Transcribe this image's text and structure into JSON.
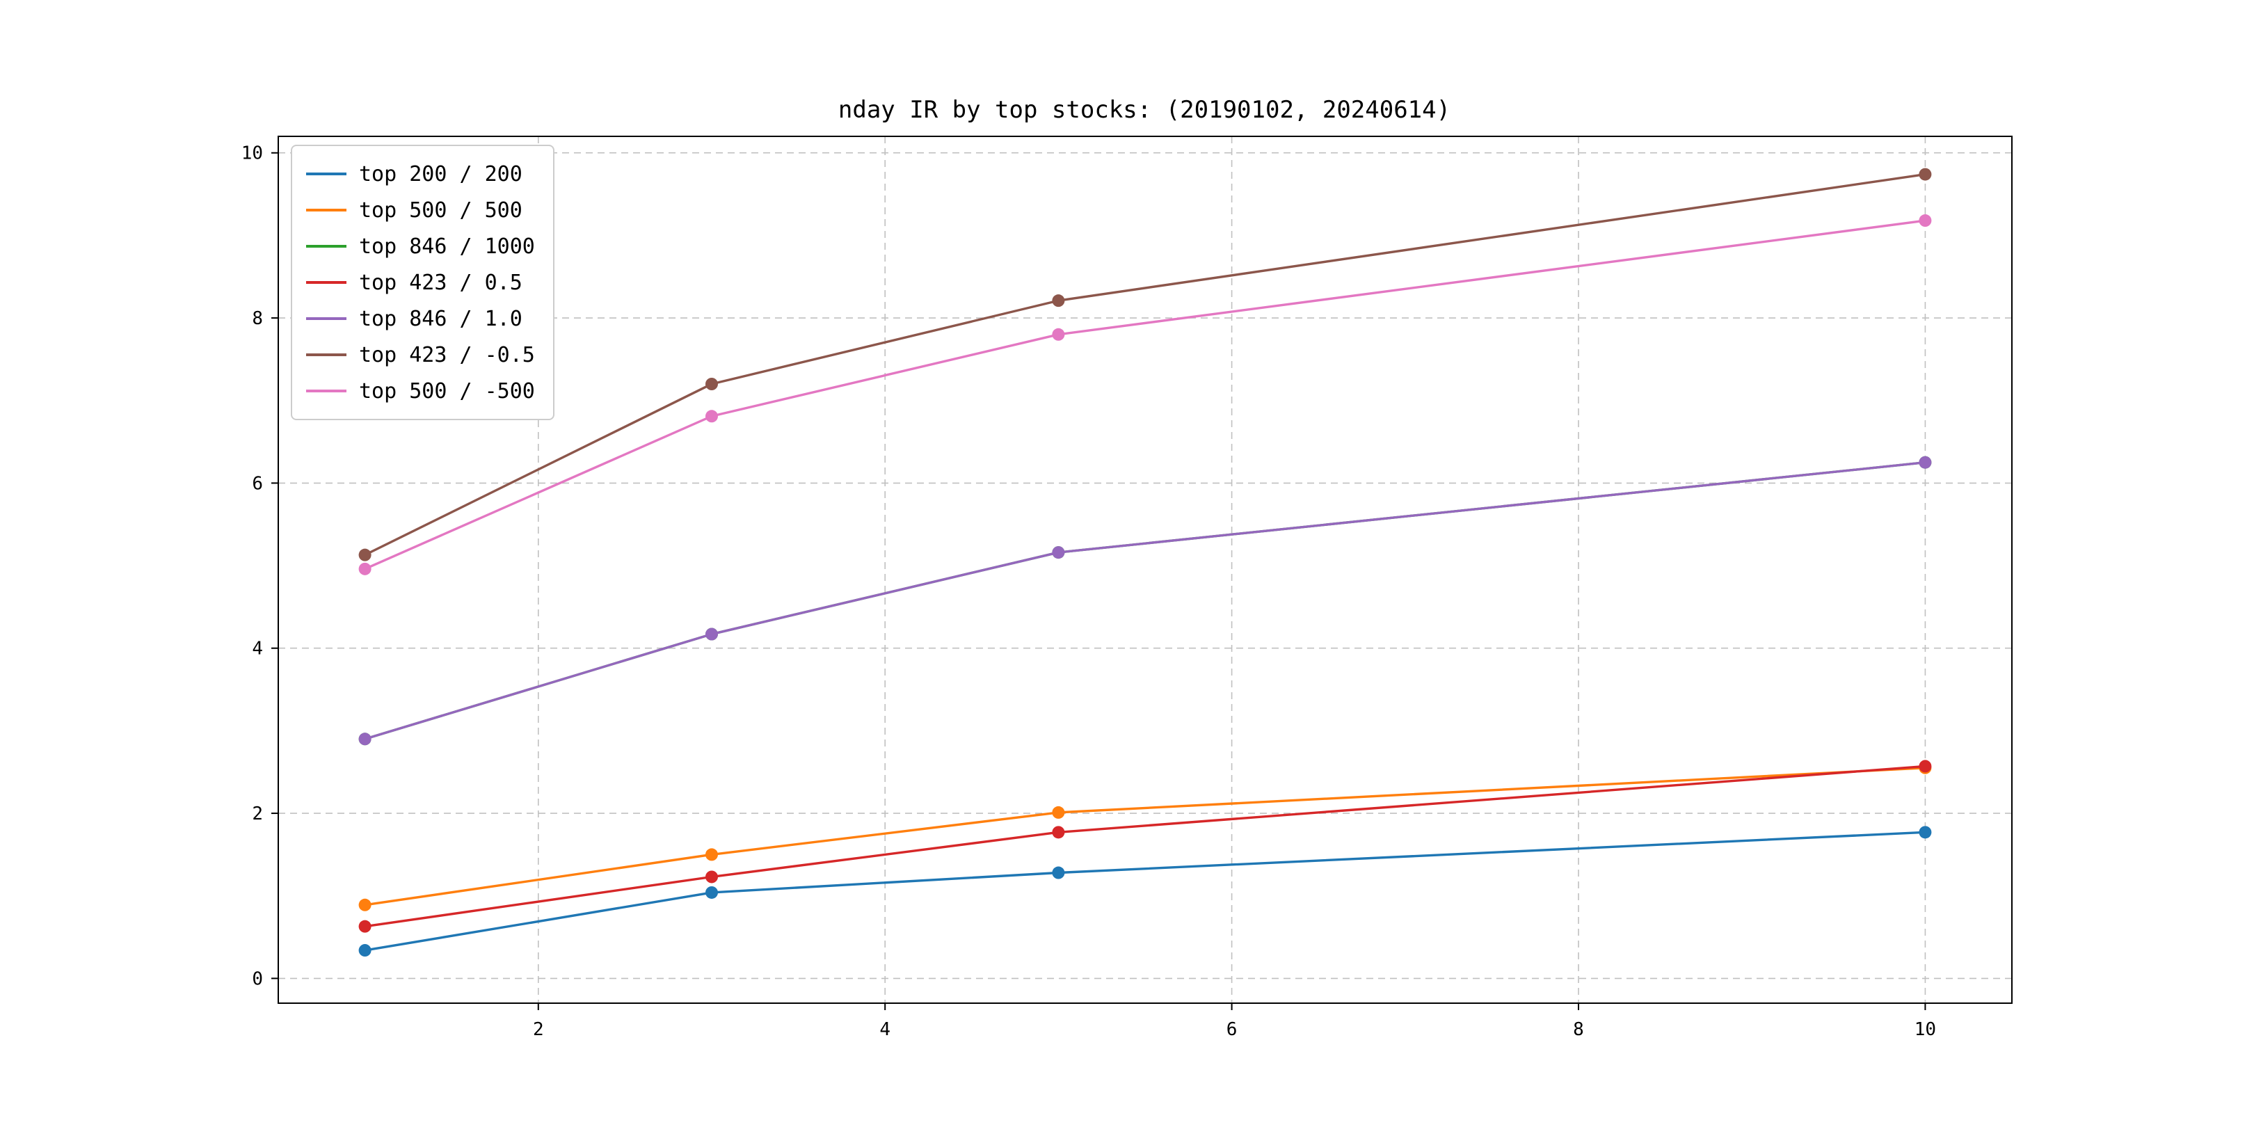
{
  "title": "nday IR by top stocks: (20190102, 20240614)",
  "chart_data": {
    "type": "line",
    "title": "nday IR by top stocks: (20190102, 20240614)",
    "xlabel": "",
    "ylabel": "",
    "x": [
      1,
      3,
      5,
      10
    ],
    "series": [
      {
        "name": "top 200 / 200",
        "color": "#1f77b4",
        "values": [
          0.34,
          1.04,
          1.28,
          1.77
        ]
      },
      {
        "name": "top 500 / 500",
        "color": "#ff7f0e",
        "values": [
          0.89,
          1.5,
          2.01,
          2.55
        ]
      },
      {
        "name": "top 846 / 1000",
        "color": "#2ca02c",
        "values": [
          2.9,
          4.17,
          5.16,
          6.25
        ]
      },
      {
        "name": "top 423 / 0.5",
        "color": "#d62728",
        "values": [
          0.63,
          1.23,
          1.77,
          2.57
        ]
      },
      {
        "name": "top 846 / 1.0",
        "color": "#9467bd",
        "values": [
          2.9,
          4.17,
          5.16,
          6.25
        ]
      },
      {
        "name": "top 423 / -0.5",
        "color": "#8c564b",
        "values": [
          5.13,
          7.2,
          8.21,
          9.74
        ]
      },
      {
        "name": "top 500 / -500",
        "color": "#e377c2",
        "values": [
          4.96,
          6.81,
          7.8,
          9.18
        ]
      }
    ],
    "xticks": [
      2,
      4,
      6,
      8,
      10
    ],
    "yticks": [
      0,
      2,
      4,
      6,
      8,
      10
    ],
    "xlim": [
      0.5,
      10.5
    ],
    "ylim": [
      -0.3,
      10.2
    ],
    "grid": true,
    "grid_style": "dashed",
    "legend_position": "upper-left",
    "marker": "circle"
  },
  "colors": {
    "grid": "#c0c0c0",
    "axis_border": "#000000",
    "background": "#ffffff"
  }
}
